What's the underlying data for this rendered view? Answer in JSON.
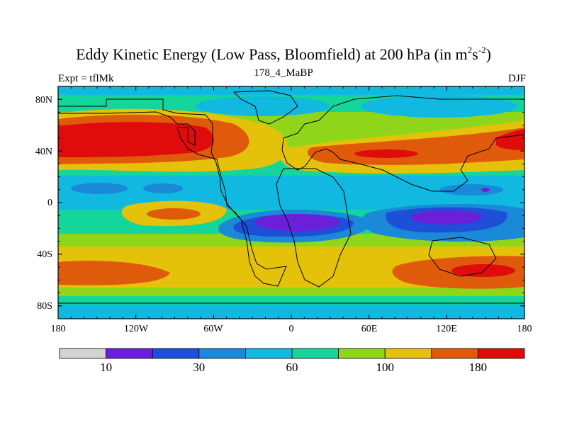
{
  "title": {
    "main": "Eddy Kinetic Energy (Low Pass, Bloomfield) at 200 hPa (in m",
    "sup1": "2",
    "mid": "s",
    "sup2": "-2",
    "close": ")"
  },
  "subtitle_left": "Expt = tflMk",
  "subtitle_center": "178_4_MaBP",
  "subtitle_right": "DJF",
  "map": {
    "x_ticks": [
      "180",
      "120W",
      "60W",
      "0",
      "60E",
      "120E",
      "180"
    ],
    "y_ticks": [
      "80N",
      "40N",
      "0",
      "40S",
      "80S"
    ],
    "lon_range": [
      -180,
      180
    ],
    "lat_range": [
      -90,
      90
    ]
  },
  "colorbar": {
    "colors": [
      "#d3d3d3",
      "#6a1fd8",
      "#1e4fd8",
      "#1a8ad8",
      "#11b8e0",
      "#14d69b",
      "#8fd61a",
      "#e5c20a",
      "#e05a0c",
      "#e00b0b"
    ],
    "labels": [
      "10",
      "30",
      "60",
      "100",
      "180"
    ],
    "label_after_box": [
      1,
      3,
      5,
      7,
      9
    ]
  },
  "colors": {
    "grey": "#d3d3d3",
    "purple": "#6a1fd8",
    "blue": "#1e4fd8",
    "midblue": "#1a8ad8",
    "cyan": "#11b8e0",
    "teal": "#14d69b",
    "lime": "#8fd61a",
    "yellow": "#e5c20a",
    "orange": "#e05a0c",
    "red": "#e00b0b"
  }
}
